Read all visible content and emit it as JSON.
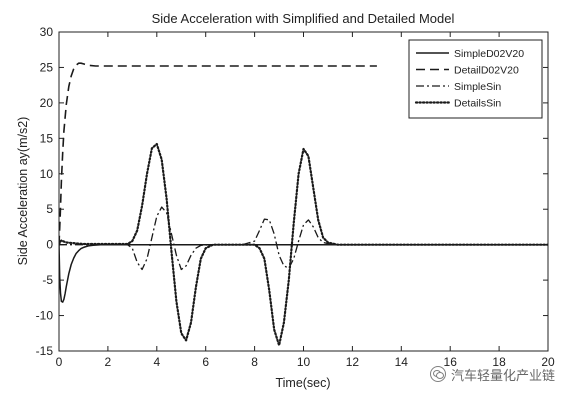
{
  "chart_data": {
    "type": "line",
    "title": "Side Acceleration with Simplified and Detailed Model",
    "xlabel": "Time(sec)",
    "ylabel": "Side Acceleration  ay(m/s2)",
    "xlim": [
      0,
      20
    ],
    "ylim": [
      -15,
      30
    ],
    "xticks": [
      "0",
      "2",
      "4",
      "6",
      "8",
      "10",
      "12",
      "14",
      "16",
      "18",
      "20"
    ],
    "yticks": [
      "30",
      "25",
      "20",
      "15",
      "10",
      "5",
      "0",
      "-5",
      "-10",
      "-15"
    ],
    "grid": false,
    "legend_position": "top-right",
    "series": [
      {
        "name": "SimpleD02V20",
        "style": "solid",
        "x": [
          0,
          0.03,
          0.06,
          0.1,
          0.15,
          0.2,
          0.25,
          0.3,
          0.4,
          0.5,
          0.6,
          0.7,
          0.8,
          0.9,
          1.0,
          1.2,
          1.4,
          1.7,
          2.0,
          3.0,
          5.0,
          10.0,
          15.0,
          20.0
        ],
        "y": [
          0,
          -4.5,
          -6.8,
          -8.0,
          -8.1,
          -7.7,
          -6.9,
          -5.9,
          -4.1,
          -2.8,
          -1.9,
          -1.25,
          -0.85,
          -0.55,
          -0.38,
          -0.17,
          -0.08,
          -0.02,
          0,
          0,
          0,
          0,
          0,
          0
        ]
      },
      {
        "name": "DetailD02V20",
        "style": "dashed",
        "x": [
          0,
          0.05,
          0.1,
          0.15,
          0.2,
          0.3,
          0.4,
          0.5,
          0.6,
          0.7,
          0.8,
          0.9,
          1.0,
          1.2,
          1.5,
          2.0,
          3.0,
          5.0,
          8.0,
          10.0,
          13.0
        ],
        "y": [
          0,
          4.0,
          9.0,
          13.0,
          16.0,
          19.8,
          22.3,
          23.8,
          24.8,
          25.3,
          25.6,
          25.6,
          25.5,
          25.3,
          25.2,
          25.2,
          25.2,
          25.2,
          25.2,
          25.2,
          25.2
        ]
      },
      {
        "name": "SimpleSin",
        "style": "dashdot",
        "x": [
          0,
          2.8,
          3.0,
          3.2,
          3.4,
          3.6,
          3.8,
          4.0,
          4.2,
          4.4,
          4.6,
          4.8,
          5.0,
          5.2,
          5.4,
          5.6,
          5.8,
          6.2,
          7.5,
          8.0,
          8.2,
          8.4,
          8.6,
          8.8,
          9.0,
          9.2,
          9.4,
          9.6,
          9.8,
          10.0,
          10.2,
          10.4,
          10.6,
          10.8,
          11.2,
          12.5,
          20.0
        ],
        "y": [
          0,
          0,
          -0.5,
          -2.5,
          -3.5,
          -2.0,
          1.0,
          4.0,
          5.3,
          4.5,
          1.5,
          -1.5,
          -3.5,
          -3.0,
          -1.5,
          -0.5,
          -0.1,
          0,
          0,
          0.5,
          2.0,
          3.6,
          3.5,
          1.5,
          -1.5,
          -3.0,
          -3.3,
          -2.0,
          0.5,
          2.8,
          3.5,
          2.5,
          1.0,
          0.3,
          0,
          0,
          0
        ]
      },
      {
        "name": "DetailsSin",
        "style": "dotted",
        "x": [
          0,
          0.05,
          0.1,
          0.15,
          0.3,
          1.0,
          2.8,
          3.0,
          3.2,
          3.4,
          3.6,
          3.8,
          4.0,
          4.2,
          4.4,
          4.6,
          4.8,
          5.0,
          5.2,
          5.4,
          5.6,
          5.8,
          6.0,
          6.3,
          7.5,
          8.0,
          8.2,
          8.4,
          8.6,
          8.8,
          9.0,
          9.2,
          9.4,
          9.6,
          9.8,
          10.0,
          10.2,
          10.4,
          10.6,
          10.8,
          11.0,
          11.4,
          12.5,
          20.0
        ],
        "y": [
          0,
          0.4,
          0.6,
          0.5,
          0.3,
          0.1,
          0.1,
          0.5,
          2.0,
          5.5,
          10.0,
          13.6,
          14.2,
          12.0,
          6.5,
          -1.0,
          -8.0,
          -12.5,
          -13.5,
          -11.0,
          -6.0,
          -2.0,
          -0.5,
          0,
          0,
          0,
          -0.5,
          -2.0,
          -6.5,
          -12.0,
          -14.2,
          -11.0,
          -5.0,
          3.0,
          10.0,
          13.5,
          12.5,
          8.0,
          3.5,
          1.0,
          0.3,
          0,
          0,
          0
        ]
      }
    ]
  },
  "watermark": {
    "text": "汽车轻量化产业链",
    "icon": "wechat-icon"
  }
}
